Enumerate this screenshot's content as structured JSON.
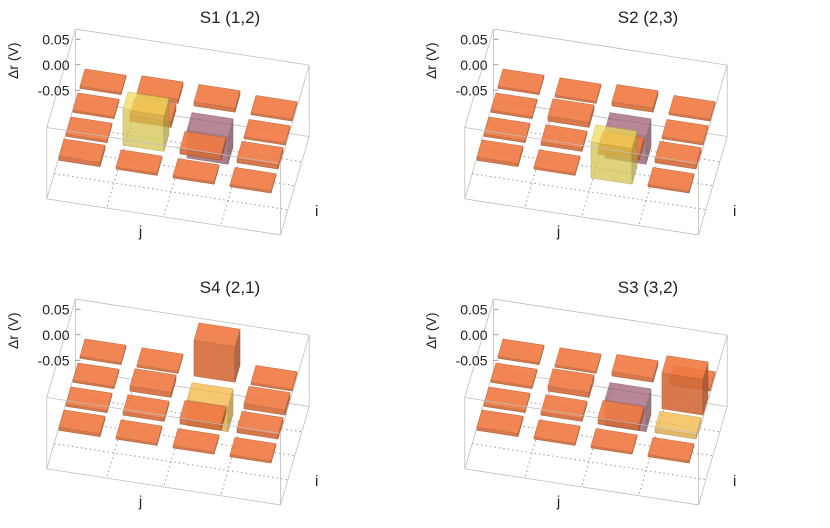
{
  "chart_data": [
    {
      "type": "bar3d",
      "title": "S1 (1,2)",
      "zlabel": "Δr (V)",
      "xlabel": "j",
      "ylabel": "i",
      "zlim": [
        -0.07,
        0.07
      ],
      "ticks": [
        "0.05",
        "0.00",
        "-0.05"
      ],
      "tick_values": [
        0.05,
        0.0,
        -0.05
      ],
      "grid": [
        [
          0.0,
          0.004,
          0.002,
          0.008
        ],
        [
          0.008,
          0.012,
          0.07,
          0.004
        ],
        [
          0.008,
          -0.055,
          0.01,
          0.002
        ],
        [
          0.004,
          0.002,
          0.008,
          0.0
        ]
      ],
      "highlight": [
        1,
        2
      ],
      "highlight_color": "#f0dc55"
    },
    {
      "type": "bar3d",
      "title": "S2 (2,3)",
      "zlabel": "Δr (V)",
      "xlabel": "j",
      "ylabel": "i",
      "zlim": [
        -0.07,
        0.07
      ],
      "ticks": [
        "0.05",
        "0.00",
        "-0.05"
      ],
      "tick_values": [
        0.05,
        0.0,
        -0.05
      ],
      "grid": [
        [
          0.0,
          0.002,
          0.004,
          0.006
        ],
        [
          0.004,
          0.01,
          0.006,
          0.004
        ],
        [
          0.008,
          -0.055,
          0.01,
          0.07
        ],
        [
          0.004,
          0.002,
          0.008,
          0.0
        ]
      ],
      "highlight": [
        2,
        3
      ],
      "highlight_color": "#f0dc55"
    },
    {
      "type": "bar3d",
      "title": "S4 (2,1)",
      "zlabel": "Δr (V)",
      "xlabel": "j",
      "ylabel": "i",
      "zlim": [
        -0.07,
        0.07
      ],
      "ticks": [
        "0.05",
        "0.00",
        "-0.05"
      ],
      "tick_values": [
        0.05,
        0.0,
        -0.05
      ],
      "grid": [
        [
          0.0,
          0.004,
          0.002,
          0.006
        ],
        [
          0.004,
          0.01,
          0.006,
          0.004
        ],
        [
          0.07,
          -0.05,
          0.012,
          0.002
        ],
        [
          0.004,
          0.01,
          0.008,
          0.0
        ]
      ],
      "highlight": [
        2,
        1
      ],
      "highlight_color": "#f5b43c"
    },
    {
      "type": "bar3d",
      "title": "S3 (3,2)",
      "zlabel": "Δr (V)",
      "xlabel": "j",
      "ylabel": "i",
      "zlim": [
        -0.07,
        0.07
      ],
      "ticks": [
        "0.05",
        "0.00",
        "-0.05"
      ],
      "tick_values": [
        0.05,
        0.0,
        -0.05
      ],
      "grid": [
        [
          0.0,
          0.004,
          0.002,
          0.006
        ],
        [
          0.004,
          0.01,
          0.006,
          0.004
        ],
        [
          0.008,
          -0.05,
          0.012,
          0.002
        ],
        [
          0.004,
          0.07,
          0.008,
          0.0
        ]
      ],
      "highlight": [
        3,
        2
      ],
      "highlight_color": "#f5b43c"
    }
  ],
  "colors": {
    "bar_positive": "#f07a42",
    "bar_negative": "#9a5a6e",
    "box_edge": "#bdbdbd",
    "grid_dots": "#9a9a9a"
  }
}
